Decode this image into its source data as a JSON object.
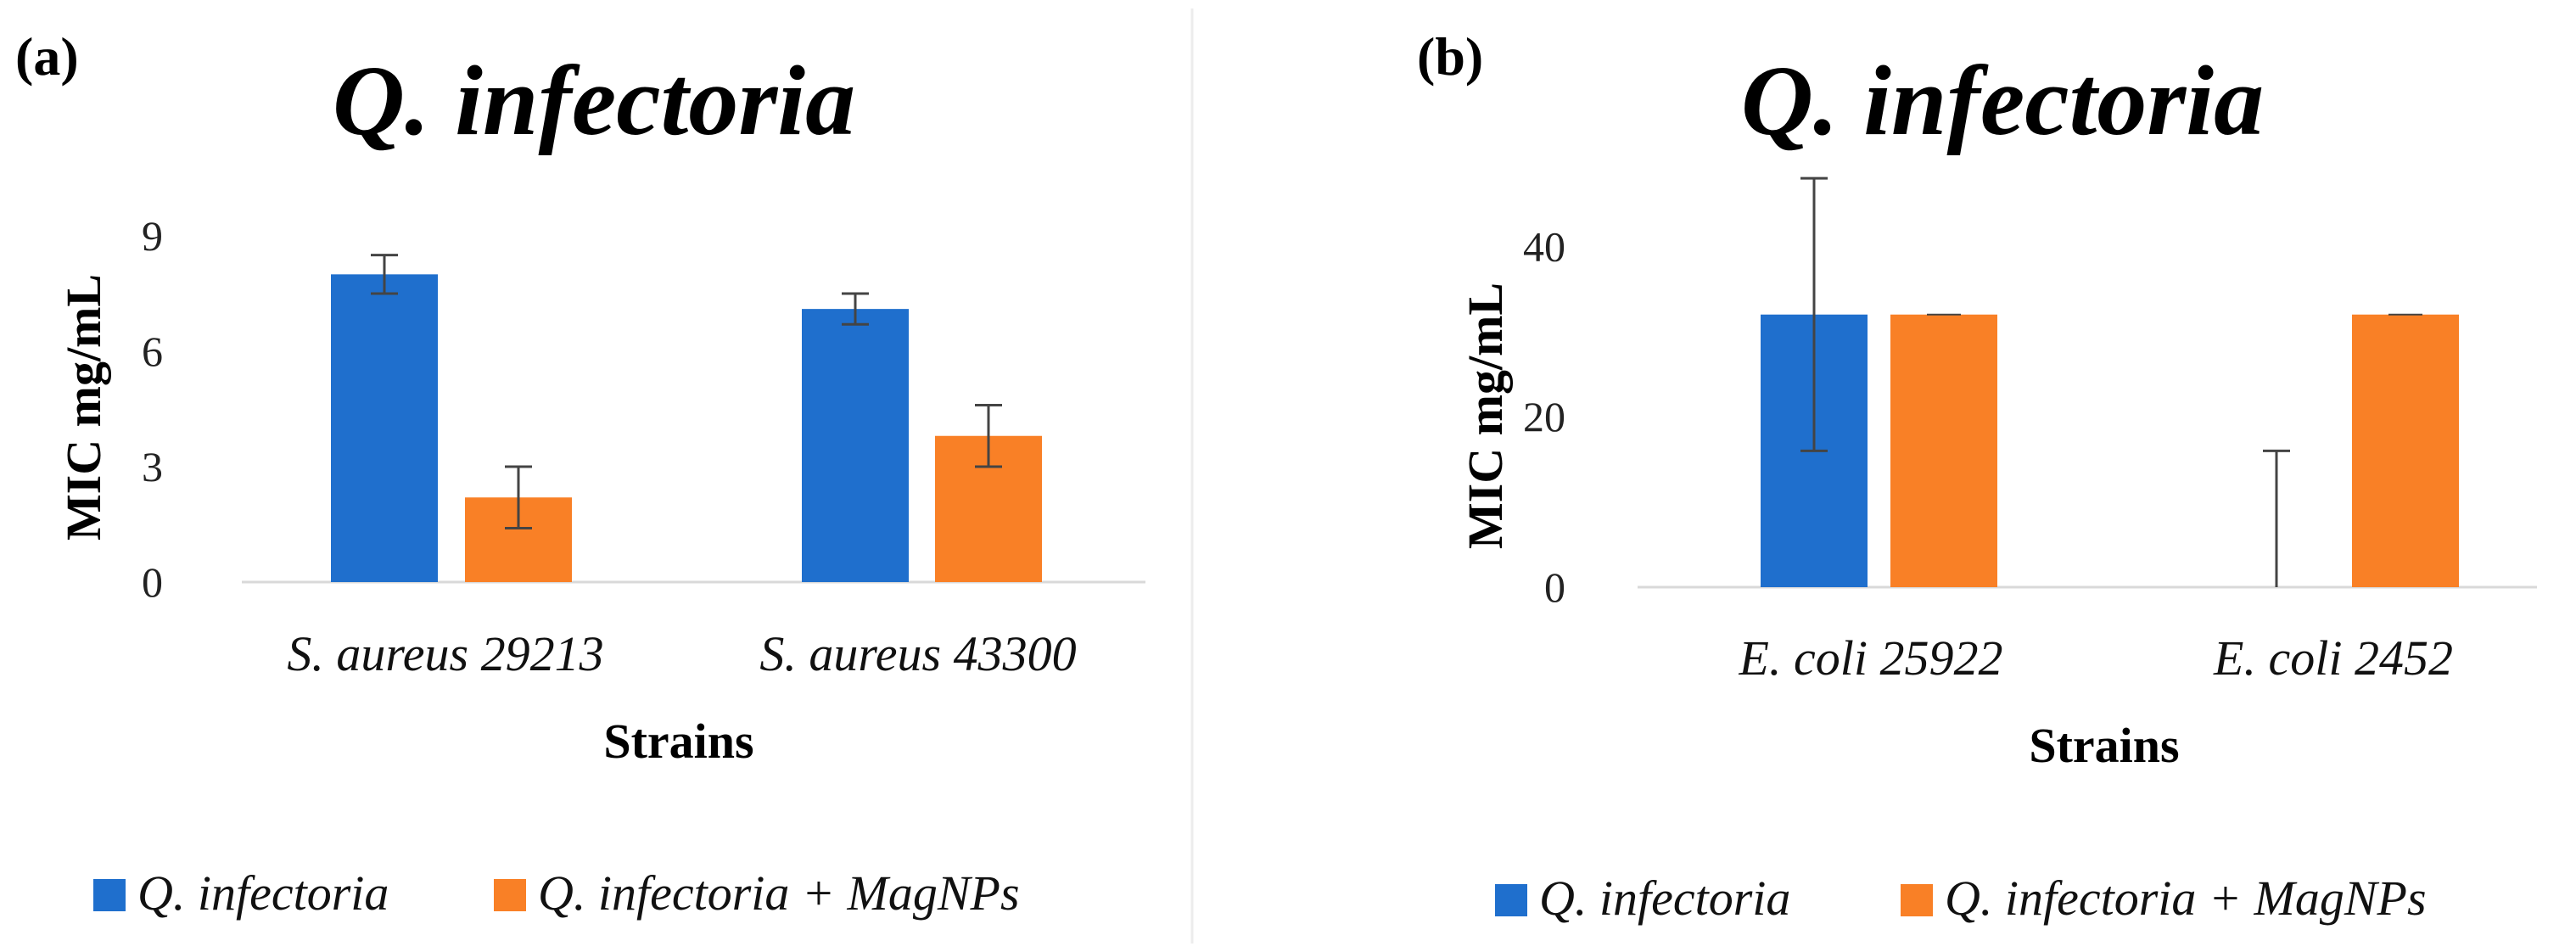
{
  "colors": {
    "series1": "#1f6fcd",
    "series2": "#f98026",
    "axis": "#d9d9d9",
    "error": "#444444",
    "divider": "#e6e6e6"
  },
  "chart_data": [
    {
      "type": "bar",
      "panel_label": "(a)",
      "title": "Q. infectoria",
      "xlabel": "Strains",
      "ylabel": "MIC mg/mL",
      "ylim": [
        0,
        9
      ],
      "yticks": [
        "0",
        "3",
        "6",
        "9"
      ],
      "ytick_values": [
        0,
        3,
        6,
        9
      ],
      "categories": [
        "S. aureus 29213",
        "S. aureus 43300"
      ],
      "series": [
        {
          "name": "Q. infectoria",
          "values": [
            8.0,
            7.1
          ],
          "errors": [
            0.5,
            0.4
          ]
        },
        {
          "name": "Q. infectoria + MagNPs",
          "values": [
            2.2,
            3.8
          ],
          "errors": [
            0.8,
            0.8
          ]
        }
      ],
      "legend_position": "bottom"
    },
    {
      "type": "bar",
      "panel_label": "(b)",
      "title": "Q. infectoria",
      "xlabel": "Strains",
      "ylabel": "MIC mg/mL",
      "ylim": [
        0,
        50
      ],
      "yticks": [
        "0",
        "20",
        "40"
      ],
      "ytick_values": [
        0,
        20,
        40
      ],
      "categories": [
        "E. coli 25922",
        "E. coli 2452"
      ],
      "series": [
        {
          "name": "Q. infectoria",
          "values": [
            32,
            0
          ],
          "errors": [
            16,
            16
          ]
        },
        {
          "name": "Q. infectoria + MagNPs",
          "values": [
            32,
            32
          ],
          "errors": [
            0,
            0
          ]
        }
      ],
      "legend_position": "bottom"
    }
  ]
}
